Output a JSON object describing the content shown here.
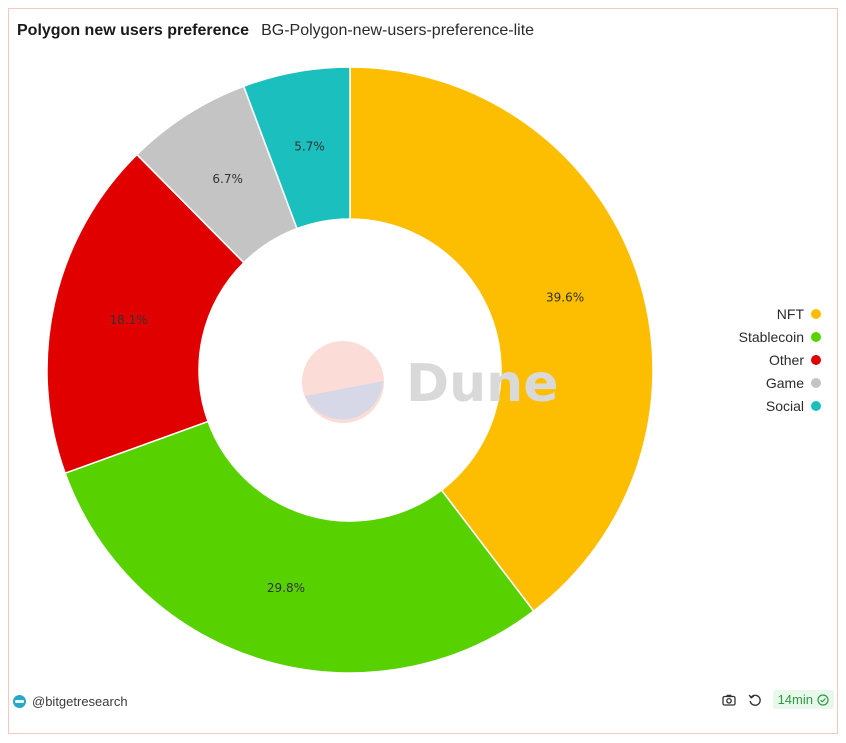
{
  "header": {
    "title": "Polygon new users preference",
    "subtitle": "BG-Polygon-new-users-preference-lite"
  },
  "chart_data": {
    "type": "pie",
    "donut": true,
    "slices": [
      {
        "label": "NFT",
        "value": 39.6,
        "display": "39.6%",
        "color": "#FDBD00"
      },
      {
        "label": "Stablecoin",
        "value": 29.8,
        "display": "29.8%",
        "color": "#58D100"
      },
      {
        "label": "Other",
        "value": 18.1,
        "display": "18.1%",
        "color": "#E00000"
      },
      {
        "label": "Game",
        "value": 6.7,
        "display": "6.7%",
        "color": "#C4C4C4"
      },
      {
        "label": "Social",
        "value": 5.7,
        "display": "5.7%",
        "color": "#1BBFBD"
      }
    ],
    "legend_position": "right"
  },
  "watermark": {
    "text": "Dune"
  },
  "footer": {
    "author": "@bitgetresearch",
    "refresh_age": "14min",
    "icons": [
      "camera-icon",
      "refresh-icon",
      "check-circle-icon"
    ]
  }
}
